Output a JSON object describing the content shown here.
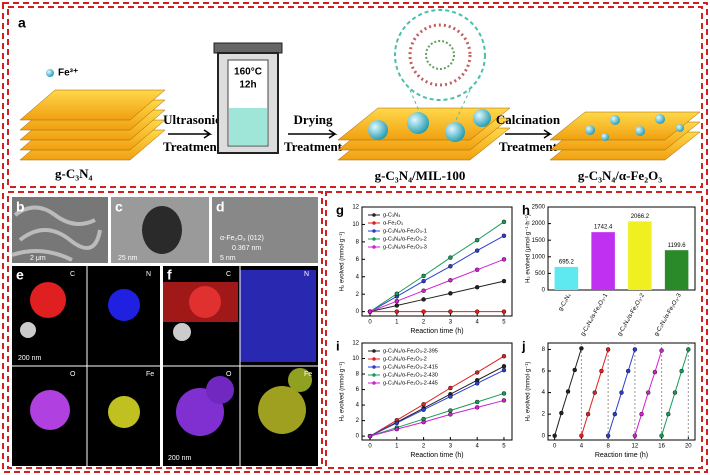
{
  "panels": {
    "a": {
      "label": "a",
      "ion": "Fe³⁺",
      "start": "g-C₃N₄",
      "step1": [
        "Ultrasonic",
        "Treatment"
      ],
      "autoclave": [
        "160°C",
        "12h"
      ],
      "step2": [
        "Drying",
        "Treatment"
      ],
      "middle": "g-C₃N₄/MIL-100",
      "step3": [
        "Calcination",
        "Treatment"
      ],
      "end": "g-C₃N₄/α-Fe₂O₃"
    },
    "b": {
      "label": "b",
      "scale": "2 μm"
    },
    "c": {
      "label": "c",
      "scale": "25 nm"
    },
    "d": {
      "label": "d",
      "lattice": "α-Fe₂O₃ (012)",
      "spacing": "0.367 nm",
      "scale": "5 nm"
    },
    "e": {
      "label": "e",
      "maps": [
        "C",
        "N",
        "O",
        "Fe"
      ],
      "scale": "200 nm"
    },
    "f": {
      "label": "f",
      "maps": [
        "C",
        "N",
        "O",
        "Fe"
      ],
      "scale": "200 nm"
    }
  },
  "chart_data": [
    {
      "type": "line",
      "panel_label": "g",
      "xlabel": "Reaction time (h)",
      "ylabel": "H₂ evolved (mmol·g⁻¹)",
      "x": [
        0,
        1,
        2,
        3,
        4,
        5
      ],
      "xlim": [
        -0.3,
        5.3
      ],
      "ylim": [
        -0.5,
        12
      ],
      "xticks": [
        0,
        1,
        2,
        3,
        4,
        5
      ],
      "yticks": [
        0,
        2,
        4,
        6,
        8,
        10,
        12
      ],
      "legend": "upper left",
      "series": [
        {
          "name": "g-C₃N₄",
          "color": "#222222",
          "values": [
            0,
            0.7,
            1.4,
            2.1,
            2.8,
            3.5
          ]
        },
        {
          "name": "α-Fe₂O₃",
          "color": "#e02020",
          "values": [
            0,
            0,
            0,
            0,
            0,
            0
          ]
        },
        {
          "name": "g-C₃N₄/α-Fe₂O₃-1",
          "color": "#2a3fd0",
          "values": [
            0,
            1.75,
            3.5,
            5.2,
            7.0,
            8.7
          ]
        },
        {
          "name": "g-C₃N₄/α-Fe₂O₃-2",
          "color": "#1a9a5a",
          "values": [
            0,
            2.05,
            4.1,
            6.2,
            8.2,
            10.3
          ]
        },
        {
          "name": "g-C₃N₄/α-Fe₂O₃-3",
          "color": "#d020d0",
          "values": [
            0,
            1.2,
            2.4,
            3.6,
            4.8,
            6.0
          ]
        }
      ]
    },
    {
      "type": "bar",
      "panel_label": "h",
      "ylabel": "H₂ evolved (μmol·g⁻¹·h⁻¹)",
      "categories": [
        "g-C₃N₄",
        "g-C₃N₄/α-Fe₂O₃-1",
        "g-C₃N₄/α-Fe₂O₃-2",
        "g-C₃N₄/α-Fe₂O₃-3"
      ],
      "values": [
        695.2,
        1742.4,
        2066.2,
        1199.6
      ],
      "colors": [
        "#5ee8f0",
        "#c030f0",
        "#f0f020",
        "#2a8a2a"
      ],
      "ylim": [
        0,
        2500
      ],
      "yticks": [
        0,
        500,
        1000,
        1500,
        2000,
        2500
      ]
    },
    {
      "type": "line",
      "panel_label": "i",
      "xlabel": "Reaction time (h)",
      "ylabel": "H₂ evolved (mmol·g⁻¹)",
      "x": [
        0,
        1,
        2,
        3,
        4,
        5
      ],
      "xlim": [
        -0.3,
        5.3
      ],
      "ylim": [
        -0.5,
        12
      ],
      "xticks": [
        0,
        1,
        2,
        3,
        4,
        5
      ],
      "yticks": [
        0,
        2,
        4,
        6,
        8,
        10,
        12
      ],
      "legend": "upper left",
      "series": [
        {
          "name": "g-C₃N₄/α-Fe₂O₃-2-395",
          "color": "#222222",
          "values": [
            0,
            1.8,
            3.6,
            5.4,
            7.2,
            9.0
          ]
        },
        {
          "name": "g-C₃N₄/α-Fe₂O₃-2",
          "color": "#e02020",
          "values": [
            0,
            2.05,
            4.1,
            6.2,
            8.2,
            10.3
          ]
        },
        {
          "name": "g-C₃N₄/α-Fe₂O₃-2-415",
          "color": "#2a3fd0",
          "values": [
            0,
            1.7,
            3.4,
            5.1,
            6.8,
            8.5
          ]
        },
        {
          "name": "g-C₃N₄/α-Fe₂O₃-2-430",
          "color": "#1a9a5a",
          "values": [
            0,
            1.1,
            2.2,
            3.3,
            4.4,
            5.5
          ]
        },
        {
          "name": "g-C₃N₄/α-Fe₂O₃-2-445",
          "color": "#d020d0",
          "values": [
            0,
            0.9,
            1.8,
            2.8,
            3.7,
            4.6
          ]
        }
      ]
    },
    {
      "type": "line",
      "panel_label": "j",
      "xlabel": "Reaction time (h)",
      "ylabel": "H₂ evolved (mmol·g⁻¹)",
      "xlim": [
        -1,
        21
      ],
      "ylim": [
        -0.4,
        8.6
      ],
      "xticks": [
        0,
        4,
        8,
        12,
        16,
        20
      ],
      "yticks": [
        0,
        2,
        4,
        6,
        8
      ],
      "series": [
        {
          "color": "#222222",
          "x": [
            0,
            1,
            2,
            3,
            4
          ],
          "values": [
            0,
            2.1,
            4.1,
            6.1,
            8.1
          ]
        },
        {
          "color": "#e02020",
          "x": [
            4,
            5,
            6,
            7,
            8
          ],
          "values": [
            0,
            2.0,
            4.0,
            6.0,
            8.0
          ]
        },
        {
          "color": "#2a3fd0",
          "x": [
            8,
            9,
            10,
            11,
            12
          ],
          "values": [
            0,
            2.0,
            4.0,
            6.0,
            8.0
          ]
        },
        {
          "color": "#d020d0",
          "x": [
            12,
            13,
            14,
            15,
            16
          ],
          "values": [
            0,
            2.0,
            4.0,
            5.9,
            7.9
          ]
        },
        {
          "color": "#1a9a5a",
          "x": [
            16,
            17,
            18,
            19,
            20
          ],
          "values": [
            0,
            2.0,
            4.0,
            6.0,
            8.0
          ]
        }
      ]
    }
  ]
}
